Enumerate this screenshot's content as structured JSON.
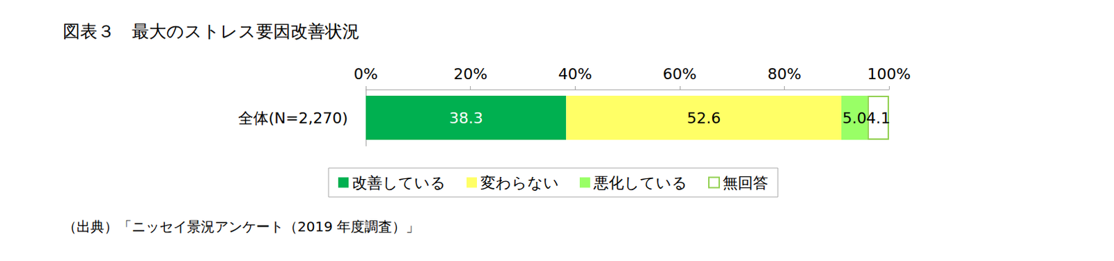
{
  "chart_data": {
    "type": "bar",
    "title": "図表３　最大のストレス要因改善状況",
    "source": "（出典）「ニッセイ景況アンケート（2019 年度調査）」",
    "orientation": "horizontal",
    "stacked": true,
    "data_labels": true,
    "grid": false,
    "legend": "bottom",
    "categories": [
      "全体(N=2,270)"
    ],
    "series": [
      {
        "name": "改善している",
        "color": "#00b050",
        "values": [
          38.3
        ],
        "value_labels": [
          "38.3"
        ]
      },
      {
        "name": "変わらない",
        "color": "#ffff66",
        "values": [
          52.6
        ],
        "value_labels": [
          "52.6"
        ]
      },
      {
        "name": "悪化している",
        "color": "#99ff66",
        "values": [
          5.0
        ],
        "value_labels": [
          "5.0"
        ]
      },
      {
        "name": "無回答",
        "color": "#ffffff",
        "values": [
          4.1
        ],
        "value_labels": [
          "4.1"
        ]
      }
    ],
    "xlim": [
      0,
      100
    ],
    "xticks": [
      {
        "value": 0,
        "label": "0%"
      },
      {
        "value": 20,
        "label": "20%"
      },
      {
        "value": 40,
        "label": "40%"
      },
      {
        "value": 60,
        "label": "60%"
      },
      {
        "value": 80,
        "label": "80%"
      },
      {
        "value": 100,
        "label": "100%"
      }
    ]
  }
}
